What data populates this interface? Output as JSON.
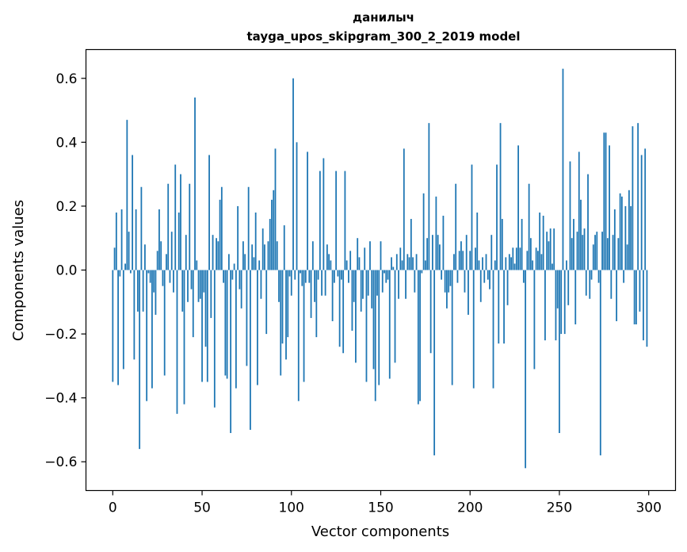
{
  "chart_data": {
    "type": "bar",
    "title_line1": "данилыч",
    "title_line2": "tayga_upos_skipgram_300_2_2019 model",
    "xlabel": "Vector components",
    "ylabel": "Components values",
    "xlim": [
      -15,
      315
    ],
    "ylim": [
      -0.69,
      0.69
    ],
    "xticks": [
      0,
      50,
      100,
      150,
      200,
      250,
      300
    ],
    "xtick_labels": [
      "0",
      "50",
      "100",
      "150",
      "200",
      "250",
      "300"
    ],
    "yticks": [
      -0.6,
      -0.4,
      -0.2,
      0.0,
      0.2,
      0.4,
      0.6
    ],
    "ytick_labels": [
      "−0.6",
      "−0.4",
      "−0.2",
      "0.0",
      "0.2",
      "0.4",
      "0.6"
    ],
    "grid": false,
    "bar_color": "#1f77b4",
    "x": [
      0,
      1,
      2,
      3,
      4,
      5,
      6,
      7,
      8,
      9,
      10,
      11,
      12,
      13,
      14,
      15,
      16,
      17,
      18,
      19,
      20,
      21,
      22,
      23,
      24,
      25,
      26,
      27,
      28,
      29,
      30,
      31,
      32,
      33,
      34,
      35,
      36,
      37,
      38,
      39,
      40,
      41,
      42,
      43,
      44,
      45,
      46,
      47,
      48,
      49,
      50,
      51,
      52,
      53,
      54,
      55,
      56,
      57,
      58,
      59,
      60,
      61,
      62,
      63,
      64,
      65,
      66,
      67,
      68,
      69,
      70,
      71,
      72,
      73,
      74,
      75,
      76,
      77,
      78,
      79,
      80,
      81,
      82,
      83,
      84,
      85,
      86,
      87,
      88,
      89,
      90,
      91,
      92,
      93,
      94,
      95,
      96,
      97,
      98,
      99,
      100,
      101,
      102,
      103,
      104,
      105,
      106,
      107,
      108,
      109,
      110,
      111,
      112,
      113,
      114,
      115,
      116,
      117,
      118,
      119,
      120,
      121,
      122,
      123,
      124,
      125,
      126,
      127,
      128,
      129,
      130,
      131,
      132,
      133,
      134,
      135,
      136,
      137,
      138,
      139,
      140,
      141,
      142,
      143,
      144,
      145,
      146,
      147,
      148,
      149,
      150,
      151,
      152,
      153,
      154,
      155,
      156,
      157,
      158,
      159,
      160,
      161,
      162,
      163,
      164,
      165,
      166,
      167,
      168,
      169,
      170,
      171,
      172,
      173,
      174,
      175,
      176,
      177,
      178,
      179,
      180,
      181,
      182,
      183,
      184,
      185,
      186,
      187,
      188,
      189,
      190,
      191,
      192,
      193,
      194,
      195,
      196,
      197,
      198,
      199,
      200,
      201,
      202,
      203,
      204,
      205,
      206,
      207,
      208,
      209,
      210,
      211,
      212,
      213,
      214,
      215,
      216,
      217,
      218,
      219,
      220,
      221,
      222,
      223,
      224,
      225,
      226,
      227,
      228,
      229,
      230,
      231,
      232,
      233,
      234,
      235,
      236,
      237,
      238,
      239,
      240,
      241,
      242,
      243,
      244,
      245,
      246,
      247,
      248,
      249,
      250,
      251,
      252,
      253,
      254,
      255,
      256,
      257,
      258,
      259,
      260,
      261,
      262,
      263,
      264,
      265,
      266,
      267,
      268,
      269,
      270,
      271,
      272,
      273,
      274,
      275,
      276,
      277,
      278,
      279,
      280,
      281,
      282,
      283,
      284,
      285,
      286,
      287,
      288,
      289,
      290,
      291,
      292,
      293,
      294,
      295,
      296,
      297,
      298,
      299
    ],
    "values": [
      -0.35,
      0.07,
      0.18,
      -0.36,
      -0.02,
      0.19,
      -0.31,
      0.02,
      0.47,
      0.12,
      -0.01,
      0.36,
      -0.28,
      0.19,
      -0.13,
      -0.56,
      0.26,
      -0.13,
      0.08,
      -0.41,
      -0.01,
      -0.04,
      -0.37,
      -0.07,
      -0.14,
      0.06,
      0.19,
      0.09,
      -0.05,
      -0.33,
      0.05,
      0.27,
      -0.04,
      0.12,
      -0.07,
      0.33,
      -0.45,
      0.18,
      0.3,
      -0.13,
      -0.42,
      0.11,
      -0.1,
      0.27,
      -0.06,
      -0.21,
      0.54,
      0.03,
      -0.1,
      -0.09,
      -0.35,
      -0.07,
      -0.24,
      -0.35,
      0.36,
      -0.15,
      0.11,
      -0.43,
      0.1,
      0.09,
      0.22,
      0.26,
      -0.04,
      -0.33,
      -0.34,
      0.05,
      -0.51,
      -0.03,
      0.02,
      -0.37,
      0.2,
      -0.06,
      -0.12,
      0.09,
      0.05,
      -0.3,
      0.26,
      -0.5,
      0.08,
      0.04,
      0.18,
      -0.36,
      0.03,
      -0.09,
      0.13,
      0.08,
      -0.2,
      0.09,
      0.16,
      0.22,
      0.25,
      0.38,
      0.09,
      -0.1,
      -0.33,
      -0.23,
      0.14,
      -0.28,
      -0.21,
      -0.02,
      -0.08,
      0.6,
      -0.03,
      0.4,
      -0.41,
      -0.01,
      -0.05,
      -0.35,
      -0.04,
      0.37,
      -0.04,
      -0.15,
      0.09,
      -0.1,
      -0.21,
      -0.03,
      0.31,
      -0.08,
      0.35,
      -0.08,
      0.08,
      0.05,
      0.03,
      -0.16,
      -0.04,
      0.31,
      -0.02,
      -0.24,
      -0.03,
      -0.26,
      0.31,
      0.03,
      -0.04,
      0.06,
      -0.19,
      -0.1,
      -0.29,
      0.1,
      0.04,
      -0.13,
      -0.09,
      0.07,
      -0.35,
      -0.08,
      0.09,
      -0.12,
      -0.31,
      -0.41,
      -0.08,
      -0.36,
      0.09,
      -0.07,
      -0.01,
      -0.04,
      -0.03,
      -0.34,
      0.04,
      0.01,
      -0.29,
      0.05,
      -0.09,
      0.07,
      0.03,
      0.38,
      -0.09,
      0.05,
      0.04,
      0.16,
      0.04,
      -0.07,
      0.05,
      -0.42,
      -0.41,
      -0.01,
      0.24,
      0.03,
      0.1,
      0.46,
      -0.26,
      0.11,
      -0.58,
      0.23,
      0.11,
      0.08,
      -0.03,
      0.17,
      -0.07,
      -0.12,
      -0.07,
      -0.05,
      -0.36,
      0.05,
      0.27,
      -0.04,
      0.06,
      0.09,
      0.06,
      -0.07,
      0.11,
      -0.14,
      0.06,
      0.33,
      -0.37,
      0.07,
      0.18,
      0.03,
      -0.1,
      0.04,
      -0.04,
      0.05,
      -0.03,
      -0.06,
      0.11,
      -0.37,
      0.03,
      0.33,
      -0.23,
      0.46,
      0.16,
      -0.23,
      0.04,
      -0.11,
      0.05,
      0.04,
      0.07,
      0.02,
      0.07,
      0.39,
      0.07,
      0.16,
      -0.04,
      -0.62,
      0.06,
      0.27,
      0.1,
      0.03,
      -0.31,
      0.07,
      0.06,
      0.18,
      0.05,
      0.17,
      -0.22,
      0.12,
      0.09,
      0.13,
      0.02,
      0.13,
      -0.22,
      -0.12,
      -0.51,
      -0.2,
      0.63,
      -0.2,
      0.03,
      -0.11,
      0.34,
      0.1,
      0.16,
      -0.17,
      0.12,
      0.37,
      0.22,
      0.11,
      0.13,
      -0.08,
      0.3,
      -0.09,
      -0.03,
      0.08,
      0.11,
      0.12,
      -0.04,
      -0.58,
      0.12,
      0.43,
      0.43,
      0.1,
      0.39,
      -0.09,
      0.11,
      0.19,
      -0.16,
      0.1,
      0.24,
      0.23,
      -0.04,
      0.2,
      0.08,
      0.25,
      0.2,
      0.45,
      -0.17,
      -0.17,
      0.46,
      -0.13,
      0.36,
      -0.22,
      0.38,
      -0.24
    ]
  }
}
